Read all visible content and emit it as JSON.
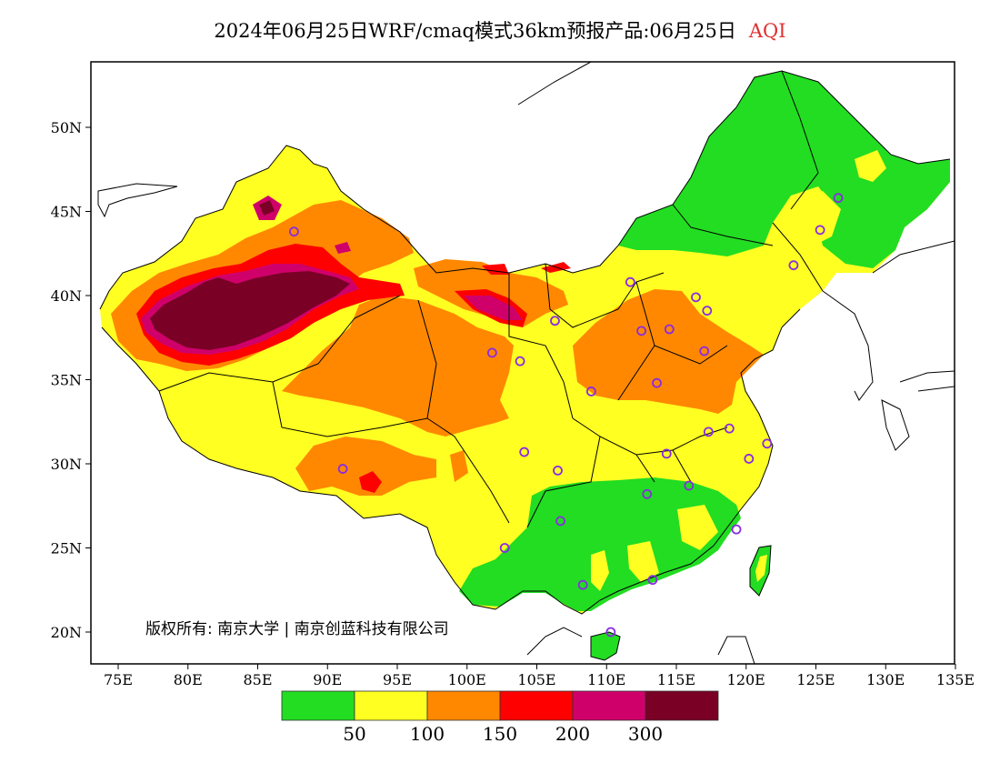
{
  "title": {
    "text": "2024年06月25日WRF/cmaq模式36km预报产品:06月25日",
    "variable": "AQI"
  },
  "map": {
    "lon_ticks": [
      "75E",
      "80E",
      "85E",
      "90E",
      "95E",
      "100E",
      "105E",
      "110E",
      "115E",
      "120E",
      "125E",
      "130E",
      "135E"
    ],
    "lat_ticks": [
      "20N",
      "25N",
      "30N",
      "35N",
      "40N",
      "45N",
      "50N"
    ],
    "copyright": "版权所有: 南京大学 | 南京创蓝科技有限公司"
  },
  "legend": {
    "colors": [
      "#22dd22",
      "#ffff22",
      "#ff8800",
      "#ff0000",
      "#d0006a",
      "#7a0026"
    ],
    "labels": [
      "50",
      "100",
      "150",
      "200",
      "300"
    ]
  },
  "stations": [
    {
      "lon": 87.6,
      "lat": 43.8
    },
    {
      "lon": 91.1,
      "lat": 29.7
    },
    {
      "lon": 101.8,
      "lat": 36.6
    },
    {
      "lon": 103.8,
      "lat": 36.1
    },
    {
      "lon": 106.3,
      "lat": 38.5
    },
    {
      "lon": 111.7,
      "lat": 40.8
    },
    {
      "lon": 112.5,
      "lat": 37.9
    },
    {
      "lon": 114.5,
      "lat": 38.0
    },
    {
      "lon": 116.4,
      "lat": 39.9
    },
    {
      "lon": 117.2,
      "lat": 39.1
    },
    {
      "lon": 117.0,
      "lat": 36.7
    },
    {
      "lon": 113.6,
      "lat": 34.8
    },
    {
      "lon": 108.9,
      "lat": 34.3
    },
    {
      "lon": 104.1,
      "lat": 30.7
    },
    {
      "lon": 106.5,
      "lat": 29.6
    },
    {
      "lon": 106.7,
      "lat": 26.6
    },
    {
      "lon": 102.7,
      "lat": 25.0
    },
    {
      "lon": 108.3,
      "lat": 22.8
    },
    {
      "lon": 113.3,
      "lat": 23.1
    },
    {
      "lon": 110.3,
      "lat": 20.0
    },
    {
      "lon": 112.9,
      "lat": 28.2
    },
    {
      "lon": 114.3,
      "lat": 30.6
    },
    {
      "lon": 115.9,
      "lat": 28.7
    },
    {
      "lon": 117.3,
      "lat": 31.9
    },
    {
      "lon": 118.8,
      "lat": 32.1
    },
    {
      "lon": 120.2,
      "lat": 30.3
    },
    {
      "lon": 121.5,
      "lat": 31.2
    },
    {
      "lon": 119.3,
      "lat": 26.1
    },
    {
      "lon": 123.4,
      "lat": 41.8
    },
    {
      "lon": 125.3,
      "lat": 43.9
    },
    {
      "lon": 126.6,
      "lat": 45.8
    }
  ]
}
